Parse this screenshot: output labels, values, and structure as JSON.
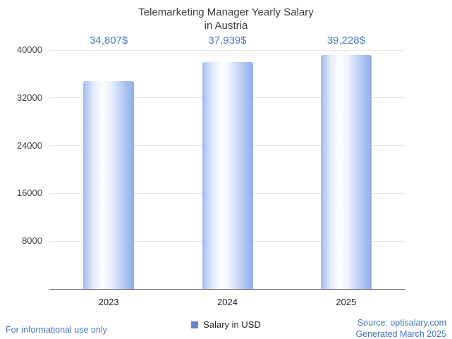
{
  "chart_data": {
    "type": "bar",
    "title": "Telemarketing Manager Yearly Salary in Austria",
    "title_lines": [
      "Telemarketing Manager Yearly Salary",
      "in Austria"
    ],
    "categories": [
      "2023",
      "2024",
      "2025"
    ],
    "series": [
      {
        "name": "Salary in USD",
        "values": [
          34807,
          37939,
          39228
        ]
      }
    ],
    "value_labels": [
      "34,807$",
      "37,939$",
      "39,228$"
    ],
    "xlabel": "",
    "ylabel": "",
    "ylim": [
      0,
      40000
    ],
    "yticks": [
      8000,
      16000,
      24000,
      32000,
      40000
    ],
    "grid": true,
    "legend_position": "bottom"
  },
  "legend": {
    "label": "Salary in USD"
  },
  "footer": {
    "left": "For informational use only",
    "source": "Source: optisalary.com",
    "generated": "Generated March 2025"
  },
  "colors": {
    "title": "#3c4043",
    "value_label": "#4a7ebd",
    "bar_edge": "#8fadeb",
    "bar_highlight": "#ffffff",
    "legend_marker": "#6287cd",
    "footer_text": "#4472c4",
    "gridline": "#e8e8e8",
    "axis_line": "#6b6b6b"
  }
}
